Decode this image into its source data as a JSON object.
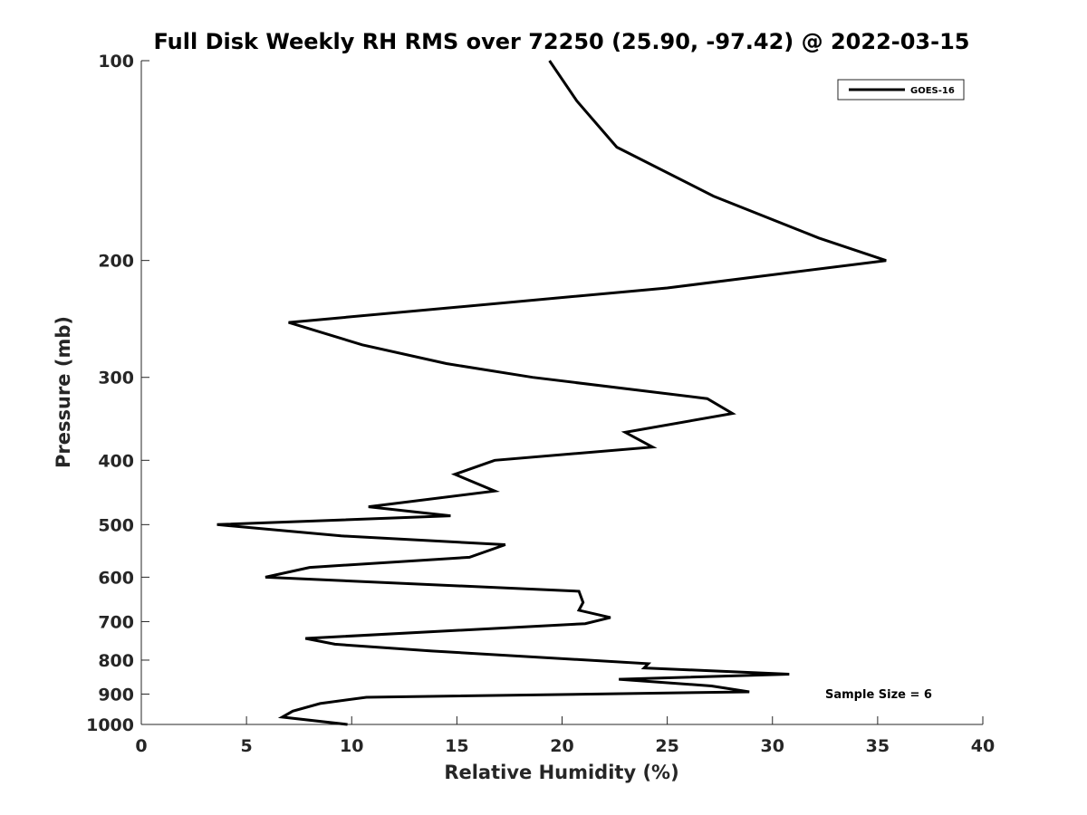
{
  "chart_data": {
    "type": "line",
    "title": "Full Disk Weekly RH RMS over 72250 (25.90, -97.42) @ 2022-03-15",
    "xlabel": "Relative Humidity (%)",
    "ylabel": "Pressure (mb)",
    "xlim": [
      0,
      40
    ],
    "ylim": [
      100,
      1000
    ],
    "y_scale": "log",
    "y_reversed": true,
    "x_ticks": [
      "0",
      "5",
      "10",
      "15",
      "20",
      "25",
      "30",
      "35",
      "40"
    ],
    "y_ticks": [
      "100",
      "200",
      "300",
      "400",
      "500",
      "600",
      "700",
      "800",
      "900",
      "1000"
    ],
    "grid": false,
    "legend_position": "top-right",
    "series": [
      {
        "name": "GOES-16",
        "color": "#000000",
        "points": [
          [
            19.4,
            100
          ],
          [
            20.7,
            115
          ],
          [
            22.6,
            135
          ],
          [
            27.2,
            160
          ],
          [
            32.2,
            185
          ],
          [
            35.4,
            200
          ],
          [
            25.0,
            220
          ],
          [
            7.0,
            248
          ],
          [
            10.5,
            268
          ],
          [
            14.5,
            286
          ],
          [
            18.6,
            300
          ],
          [
            26.9,
            323
          ],
          [
            28.1,
            340
          ],
          [
            23.0,
            363
          ],
          [
            24.3,
            382
          ],
          [
            16.8,
            400
          ],
          [
            14.9,
            420
          ],
          [
            16.8,
            445
          ],
          [
            10.8,
            470
          ],
          [
            14.7,
            485
          ],
          [
            3.6,
            500
          ],
          [
            9.5,
            520
          ],
          [
            17.3,
            536
          ],
          [
            15.6,
            560
          ],
          [
            8.0,
            580
          ],
          [
            5.9,
            600
          ],
          [
            20.8,
            630
          ],
          [
            21.0,
            655
          ],
          [
            20.8,
            673
          ],
          [
            22.3,
            690
          ],
          [
            21.1,
            705
          ],
          [
            7.8,
            742
          ],
          [
            9.2,
            757
          ],
          [
            13.8,
            775
          ],
          [
            24.1,
            810
          ],
          [
            23.9,
            822
          ],
          [
            30.8,
            840
          ],
          [
            22.7,
            855
          ],
          [
            27.1,
            875
          ],
          [
            28.9,
            893
          ],
          [
            10.7,
            910
          ],
          [
            8.5,
            930
          ],
          [
            7.2,
            955
          ],
          [
            6.7,
            975
          ],
          [
            9.8,
            1000
          ]
        ]
      }
    ],
    "annotations": [
      "Sample Size = 6"
    ]
  }
}
